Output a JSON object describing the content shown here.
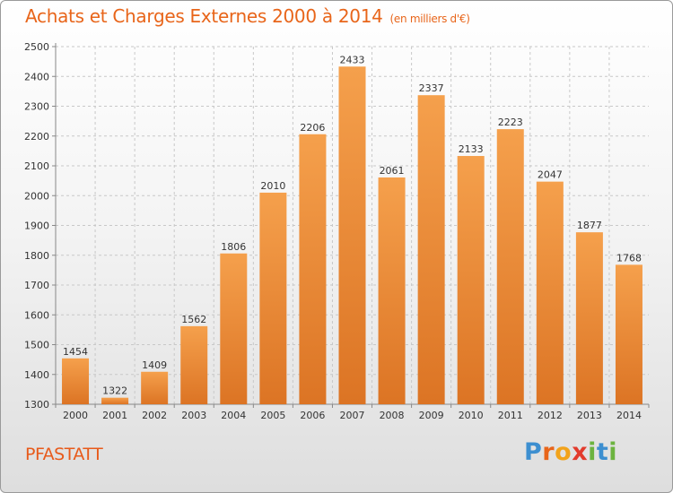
{
  "title": "Achats et Charges Externes 2000 à 2014",
  "subtitle": "(en milliers d'€)",
  "location": "PFASTATT",
  "brand": {
    "letters": [
      "P",
      "r",
      "o",
      "x",
      "i",
      "t",
      "i"
    ],
    "colors": [
      "#3d8fd0",
      "#e8651a",
      "#f2a31b",
      "#e23b2c",
      "#6cb33f",
      "#3d8fd0",
      "#6cb33f"
    ]
  },
  "colors": {
    "bar_top": "#f5a04c",
    "bar_bottom": "#dc7424",
    "title": "#e8651a",
    "grid": "#c8c8c8"
  },
  "chart_data": {
    "type": "bar",
    "categories": [
      "2000",
      "2001",
      "2002",
      "2003",
      "2004",
      "2005",
      "2006",
      "2007",
      "2008",
      "2009",
      "2010",
      "2011",
      "2012",
      "2013",
      "2014"
    ],
    "values": [
      1454,
      1322,
      1409,
      1562,
      1806,
      2010,
      2206,
      2433,
      2061,
      2337,
      2133,
      2223,
      2047,
      1877,
      1768
    ],
    "ylim": [
      1300,
      2500
    ],
    "yticks": [
      1300,
      1400,
      1500,
      1600,
      1700,
      1800,
      1900,
      2000,
      2100,
      2200,
      2300,
      2400,
      2500
    ],
    "grid": true,
    "title": "Achats et Charges Externes 2000 à 2014",
    "xlabel": "",
    "ylabel": ""
  }
}
